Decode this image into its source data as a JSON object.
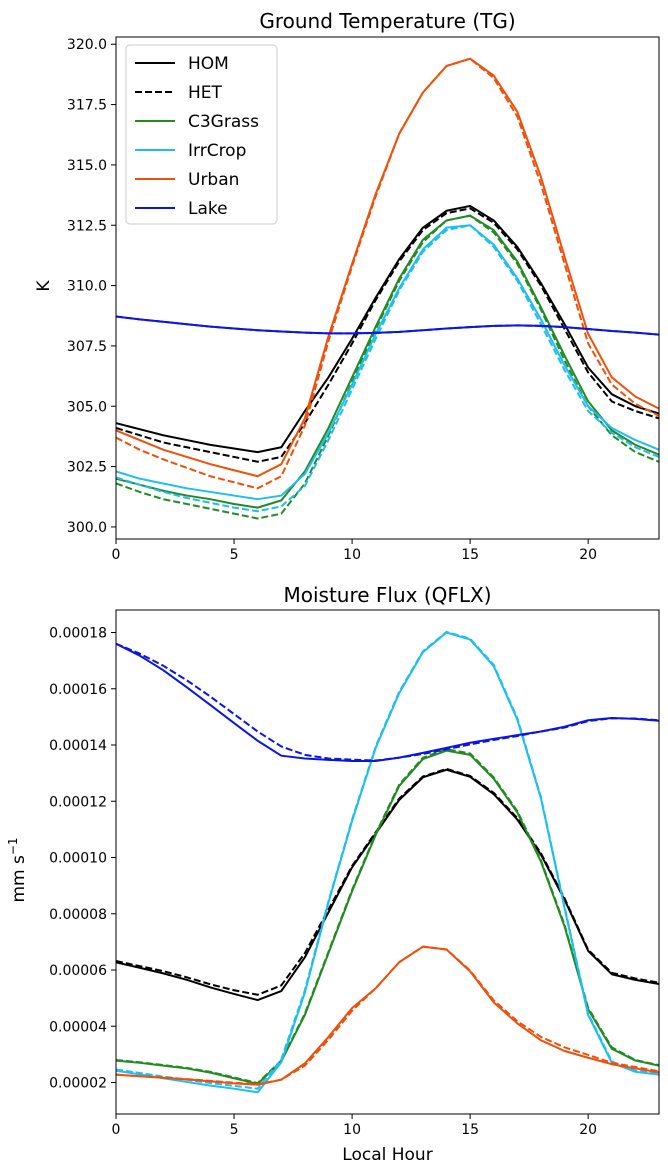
{
  "chart_data": [
    {
      "type": "line",
      "title": "Ground Temperature (TG)",
      "xlabel": "",
      "ylabel": "K",
      "xlim": [
        0,
        23
      ],
      "ylim": [
        299.5,
        320.3
      ],
      "xticks": [
        0,
        5,
        10,
        15,
        20
      ],
      "xtick_labels": [
        "0",
        "5",
        "10",
        "15",
        "20"
      ],
      "yticks": [
        300.0,
        302.5,
        305.0,
        307.5,
        310.0,
        312.5,
        315.0,
        317.5,
        320.0
      ],
      "ytick_labels": [
        "300.0",
        "302.5",
        "305.0",
        "307.5",
        "310.0",
        "312.5",
        "315.0",
        "317.5",
        "320.0"
      ],
      "grid": false,
      "legend": {
        "position": "top-left",
        "entries": [
          {
            "label": "HOM",
            "color": "#000000",
            "dash": "solid"
          },
          {
            "label": "HET",
            "color": "#000000",
            "dash": "dashed"
          },
          {
            "label": "C3Grass",
            "color": "#228B22",
            "dash": "solid"
          },
          {
            "label": "IrrCrop",
            "color": "#1EBEF0",
            "dash": "solid"
          },
          {
            "label": "Urban",
            "color": "#F0500A",
            "dash": "solid"
          },
          {
            "label": "Lake",
            "color": "#0A14E6",
            "dash": "solid"
          }
        ]
      },
      "x": [
        0,
        1,
        2,
        3,
        4,
        5,
        6,
        7,
        8,
        9,
        10,
        11,
        12,
        13,
        14,
        15,
        16,
        17,
        18,
        19,
        20,
        21,
        22,
        23
      ],
      "series": [
        {
          "name": "HOM",
          "color": "#000000",
          "dash": "solid",
          "values": [
            304.3,
            304.05,
            303.8,
            303.6,
            303.4,
            303.25,
            303.1,
            303.3,
            304.8,
            306.2,
            307.8,
            309.5,
            311.1,
            312.4,
            313.1,
            313.3,
            312.7,
            311.6,
            310.1,
            308.4,
            306.6,
            305.5,
            305.0,
            304.7
          ]
        },
        {
          "name": "HOM-HET",
          "color": "#000000",
          "dash": "dashed",
          "values": [
            304.1,
            303.8,
            303.5,
            303.3,
            303.1,
            302.9,
            302.7,
            302.9,
            304.3,
            305.9,
            307.6,
            309.4,
            311.0,
            312.3,
            313.0,
            313.2,
            312.6,
            311.5,
            310.0,
            308.2,
            306.4,
            305.2,
            304.8,
            304.5
          ]
        },
        {
          "name": "C3Grass",
          "color": "#228B22",
          "dash": "solid",
          "values": [
            302.0,
            301.75,
            301.5,
            301.3,
            301.15,
            300.95,
            300.8,
            301.1,
            302.3,
            304.1,
            306.2,
            308.3,
            310.3,
            311.9,
            312.7,
            312.9,
            312.3,
            311.0,
            309.1,
            307.1,
            305.2,
            304.0,
            303.4,
            303.0
          ]
        },
        {
          "name": "C3Grass-HET",
          "color": "#228B22",
          "dash": "dashed",
          "values": [
            301.8,
            301.45,
            301.15,
            300.95,
            300.75,
            300.55,
            300.35,
            300.55,
            301.8,
            303.8,
            306.0,
            308.2,
            310.2,
            311.8,
            312.7,
            312.9,
            312.2,
            310.9,
            309.0,
            306.9,
            305.0,
            303.8,
            303.1,
            302.7
          ]
        },
        {
          "name": "IrrCrop",
          "color": "#1EBEF0",
          "dash": "solid",
          "values": [
            302.3,
            302.0,
            301.8,
            301.6,
            301.45,
            301.3,
            301.15,
            301.3,
            302.2,
            303.9,
            305.9,
            308.0,
            309.9,
            311.5,
            312.4,
            312.5,
            311.7,
            310.3,
            308.6,
            306.7,
            305.0,
            304.1,
            303.6,
            303.2
          ]
        },
        {
          "name": "IrrCrop-HET",
          "color": "#1EBEF0",
          "dash": "dashed",
          "values": [
            302.05,
            301.75,
            301.45,
            301.2,
            301.0,
            300.8,
            300.65,
            300.85,
            301.7,
            303.6,
            305.7,
            307.8,
            309.8,
            311.4,
            312.3,
            312.5,
            311.6,
            310.2,
            308.4,
            306.5,
            304.8,
            303.9,
            303.3,
            302.9
          ]
        },
        {
          "name": "Urban",
          "color": "#F0500A",
          "dash": "solid",
          "values": [
            304.0,
            303.6,
            303.2,
            302.9,
            302.6,
            302.35,
            302.1,
            302.6,
            304.5,
            307.9,
            310.9,
            313.8,
            316.3,
            318.0,
            319.1,
            319.4,
            318.7,
            317.2,
            314.5,
            311.2,
            308.0,
            306.2,
            305.4,
            304.9
          ]
        },
        {
          "name": "Urban-HET",
          "color": "#F0500A",
          "dash": "dashed",
          "values": [
            303.7,
            303.2,
            302.8,
            302.45,
            302.1,
            301.85,
            301.6,
            302.1,
            304.2,
            307.7,
            310.8,
            313.7,
            316.3,
            318.0,
            319.1,
            319.4,
            318.6,
            317.0,
            314.2,
            310.9,
            307.6,
            305.9,
            305.1,
            304.6
          ]
        },
        {
          "name": "Lake",
          "color": "#0A14E6",
          "dash": "solid",
          "values": [
            308.72,
            308.6,
            308.5,
            308.4,
            308.3,
            308.22,
            308.15,
            308.1,
            308.05,
            308.02,
            308.02,
            308.04,
            308.08,
            308.15,
            308.22,
            308.28,
            308.33,
            308.35,
            308.33,
            308.28,
            308.2,
            308.12,
            308.05,
            307.97
          ]
        },
        {
          "name": "Lake-HET",
          "color": "#0A14E6",
          "dash": "dashed",
          "values": [
            308.72,
            308.6,
            308.5,
            308.4,
            308.3,
            308.22,
            308.15,
            308.1,
            308.05,
            308.02,
            308.02,
            308.04,
            308.08,
            308.15,
            308.22,
            308.28,
            308.33,
            308.35,
            308.33,
            308.28,
            308.2,
            308.12,
            308.05,
            307.97
          ]
        }
      ]
    },
    {
      "type": "line",
      "title": "Moisture Flux (QFLX)",
      "xlabel": "Local Hour",
      "ylabel": "mm s",
      "ylabel_sup": "−1",
      "xlim": [
        0,
        23
      ],
      "ylim": [
        8.8e-06,
        0.000188
      ],
      "xticks": [
        0,
        5,
        10,
        15,
        20
      ],
      "xtick_labels": [
        "0",
        "5",
        "10",
        "15",
        "20"
      ],
      "yticks": [
        2e-05,
        4e-05,
        6e-05,
        8e-05,
        0.0001,
        0.00012,
        0.00014,
        0.00016,
        0.00018
      ],
      "ytick_labels": [
        "0.00002",
        "0.00004",
        "0.00006",
        "0.00008",
        "0.00010",
        "0.00012",
        "0.00014",
        "0.00016",
        "0.00018"
      ],
      "grid": false,
      "x": [
        0,
        1,
        2,
        3,
        4,
        5,
        6,
        7,
        8,
        9,
        10,
        11,
        12,
        13,
        14,
        15,
        16,
        17,
        18,
        19,
        20,
        21,
        22,
        23
      ],
      "series": [
        {
          "name": "HOM",
          "color": "#000000",
          "dash": "solid",
          "values": [
            6.27e-05,
            6.08e-05,
            5.88e-05,
            5.65e-05,
            5.38e-05,
            5.15e-05,
            4.93e-05,
            5.25e-05,
            6.45e-05,
            8.05e-05,
            9.65e-05,
            0.0001085,
            0.0001205,
            0.0001285,
            0.0001312,
            0.0001287,
            0.0001225,
            0.0001135,
            0.000101,
            8.5e-05,
            6.68e-05,
            5.85e-05,
            5.65e-05,
            5.5e-05
          ]
        },
        {
          "name": "HOM-HET",
          "color": "#000000",
          "dash": "dashed",
          "values": [
            6.32e-05,
            6.14e-05,
            5.96e-05,
            5.74e-05,
            5.49e-05,
            5.28e-05,
            5.12e-05,
            5.45e-05,
            6.6e-05,
            8.15e-05,
            9.7e-05,
            0.000109,
            0.000121,
            0.0001288,
            0.0001315,
            0.000129,
            0.000123,
            0.000114,
            0.0001015,
            8.55e-05,
            6.72e-05,
            5.9e-05,
            5.7e-05,
            5.55e-05
          ]
        },
        {
          "name": "C3Grass",
          "color": "#228B22",
          "dash": "solid",
          "values": [
            2.78e-05,
            2.7e-05,
            2.6e-05,
            2.5e-05,
            2.35e-05,
            2.15e-05,
            1.95e-05,
            2.75e-05,
            4.4e-05,
            6.6e-05,
            8.8e-05,
            0.000108,
            0.0001255,
            0.000135,
            0.000138,
            0.0001365,
            0.000128,
            0.000116,
            9.85e-05,
            7.55e-05,
            4.6e-05,
            3.2e-05,
            2.78e-05,
            2.6e-05
          ]
        },
        {
          "name": "C3Grass-HET",
          "color": "#228B22",
          "dash": "dashed",
          "values": [
            2.8e-05,
            2.72e-05,
            2.62e-05,
            2.52e-05,
            2.38e-05,
            2.18e-05,
            1.98e-05,
            2.78e-05,
            4.45e-05,
            6.65e-05,
            8.85e-05,
            0.0001085,
            0.000126,
            0.0001355,
            0.0001385,
            0.000137,
            0.0001285,
            0.0001165,
            9.9e-05,
            7.6e-05,
            4.65e-05,
            3.25e-05,
            2.8e-05,
            2.62e-05
          ]
        },
        {
          "name": "IrrCrop",
          "color": "#1EBEF0",
          "dash": "solid",
          "values": [
            2.42e-05,
            2.29e-05,
            2.15e-05,
            2.02e-05,
            1.89e-05,
            1.78e-05,
            1.65e-05,
            2.72e-05,
            5.2e-05,
            8.4e-05,
            0.000113,
            0.000139,
            0.0001585,
            0.000173,
            0.00018,
            0.0001775,
            0.000168,
            0.000149,
            0.000121,
            8.2e-05,
            4.4e-05,
            2.7e-05,
            2.38e-05,
            2.28e-05
          ]
        },
        {
          "name": "IrrCrop-HET",
          "color": "#1EBEF0",
          "dash": "dashed",
          "values": [
            2.46e-05,
            2.34e-05,
            2.21e-05,
            2.1e-05,
            1.98e-05,
            1.88e-05,
            1.78e-05,
            2.82e-05,
            5.28e-05,
            8.45e-05,
            0.0001135,
            0.0001395,
            0.000159,
            0.0001733,
            0.0001802,
            0.0001778,
            0.0001685,
            0.0001495,
            0.0001215,
            8.25e-05,
            4.45e-05,
            2.75e-05,
            2.42e-05,
            2.32e-05
          ]
        },
        {
          "name": "Urban",
          "color": "#F0500A",
          "dash": "solid",
          "values": [
            2.28e-05,
            2.22e-05,
            2.17e-05,
            2.11e-05,
            2.04e-05,
            1.97e-05,
            1.92e-05,
            2.1e-05,
            2.68e-05,
            3.62e-05,
            4.65e-05,
            5.35e-05,
            6.28e-05,
            6.83e-05,
            6.73e-05,
            5.95e-05,
            4.85e-05,
            4.1e-05,
            3.5e-05,
            3.12e-05,
            2.88e-05,
            2.65e-05,
            2.5e-05,
            2.36e-05
          ]
        },
        {
          "name": "Urban-HET",
          "color": "#F0500A",
          "dash": "dashed",
          "values": [
            2.28e-05,
            2.22e-05,
            2.18e-05,
            2.12e-05,
            2.06e-05,
            1.99e-05,
            1.94e-05,
            2.1e-05,
            2.6e-05,
            3.52e-05,
            4.55e-05,
            5.35e-05,
            6.28e-05,
            6.83e-05,
            6.73e-05,
            5.98e-05,
            4.92e-05,
            4.18e-05,
            3.62e-05,
            3.25e-05,
            2.98e-05,
            2.7e-05,
            2.55e-05,
            2.4e-05
          ]
        },
        {
          "name": "Lake",
          "color": "#0A14E6",
          "dash": "solid",
          "values": [
            0.000176,
            0.0001718,
            0.0001666,
            0.0001605,
            0.0001542,
            0.0001478,
            0.0001415,
            0.0001362,
            0.0001352,
            0.0001347,
            0.0001343,
            0.0001343,
            0.0001355,
            0.0001372,
            0.000139,
            0.0001408,
            0.0001422,
            0.0001435,
            0.0001448,
            0.0001465,
            0.0001488,
            0.0001496,
            0.0001493,
            0.0001486
          ]
        },
        {
          "name": "Lake-HET",
          "color": "#0A14E6",
          "dash": "dashed",
          "values": [
            0.000176,
            0.0001725,
            0.0001682,
            0.000163,
            0.0001572,
            0.000151,
            0.0001448,
            0.0001395,
            0.0001365,
            0.0001352,
            0.0001348,
            0.0001345,
            0.0001355,
            0.0001368,
            0.0001385,
            0.0001402,
            0.0001418,
            0.0001432,
            0.0001448,
            0.0001462,
            0.0001485,
            0.0001495,
            0.0001494,
            0.0001488
          ]
        }
      ]
    }
  ]
}
